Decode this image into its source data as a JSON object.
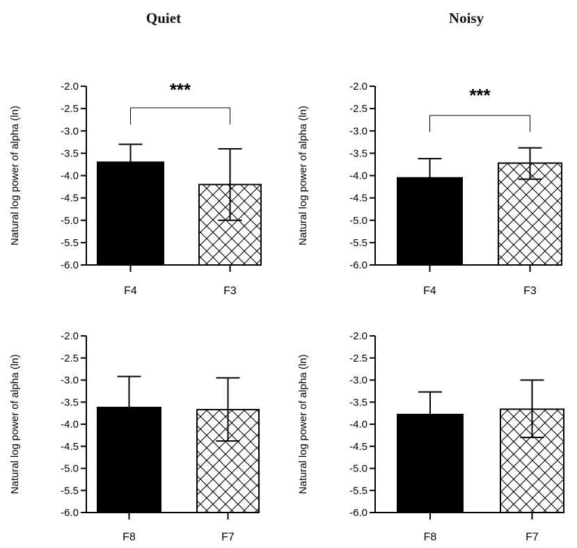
{
  "titles": {
    "left": "Quiet",
    "right": "Noisy"
  },
  "colors": {
    "bar_solid": "#000000",
    "bar_hatch": "#ffffff",
    "axis": "#000000"
  },
  "chart_data": [
    {
      "type": "bar",
      "panel": "top-left",
      "condition": "Quiet",
      "categories": [
        "F4",
        "F3"
      ],
      "values": [
        -3.7,
        -4.2
      ],
      "errors_upper": [
        -3.3,
        -3.4
      ],
      "errors_lower": [
        null,
        -5.0
      ],
      "fills": [
        "solid",
        "hatch"
      ],
      "ylabel": "Natural log power of alpha (ln)",
      "ylim": [
        -6.0,
        -2.0
      ],
      "yticks": [
        "-2.0",
        "-2.5",
        "-3.0",
        "-3.5",
        "-4.0",
        "-4.5",
        "-5.0",
        "-5.5",
        "-6.0"
      ],
      "significance": "***"
    },
    {
      "type": "bar",
      "panel": "top-right",
      "condition": "Noisy",
      "categories": [
        "F4",
        "F3"
      ],
      "values": [
        -4.05,
        -3.72
      ],
      "errors_upper": [
        -3.62,
        -3.38
      ],
      "errors_lower": [
        null,
        -4.08
      ],
      "fills": [
        "solid",
        "hatch"
      ],
      "ylabel": "Natural log power of alpha (ln)",
      "ylim": [
        -6.0,
        -2.0
      ],
      "yticks": [
        "-2.0",
        "-2.5",
        "-3.0",
        "-3.5",
        "-4.0",
        "-4.5",
        "-5.0",
        "-5.5",
        "-6.0"
      ],
      "significance": "***"
    },
    {
      "type": "bar",
      "panel": "bottom-left",
      "condition": "Quiet",
      "categories": [
        "F8",
        "F7"
      ],
      "values": [
        -3.62,
        -3.67
      ],
      "errors_upper": [
        -2.92,
        -2.95
      ],
      "errors_lower": [
        null,
        -4.38
      ],
      "fills": [
        "solid",
        "hatch"
      ],
      "ylabel": "Natural log power of alpha (ln)",
      "ylim": [
        -6.0,
        -2.0
      ],
      "yticks": [
        "-2.0",
        "-2.5",
        "-3.0",
        "-3.5",
        "-4.0",
        "-4.5",
        "-5.0",
        "-5.5",
        "-6.0"
      ],
      "significance": ""
    },
    {
      "type": "bar",
      "panel": "bottom-right",
      "condition": "Noisy",
      "categories": [
        "F8",
        "F7"
      ],
      "values": [
        -3.78,
        -3.66
      ],
      "errors_upper": [
        -3.27,
        -3.0
      ],
      "errors_lower": [
        null,
        -4.3
      ],
      "fills": [
        "solid",
        "hatch"
      ],
      "ylabel": "Natural log power of alpha (ln)",
      "ylim": [
        -6.0,
        -2.0
      ],
      "yticks": [
        "-2.0",
        "-2.5",
        "-3.0",
        "-3.5",
        "-4.0",
        "-4.5",
        "-5.0",
        "-5.5",
        "-6.0"
      ],
      "significance": ""
    }
  ]
}
